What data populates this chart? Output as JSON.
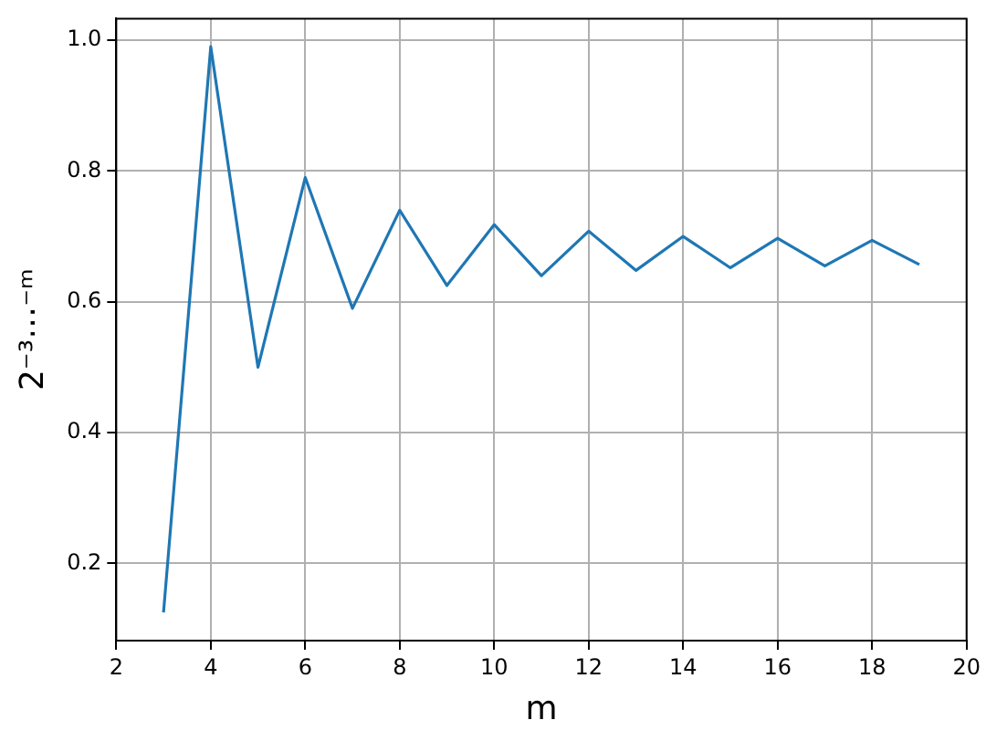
{
  "chart_data": {
    "type": "line",
    "xlabel": "m",
    "ylabel": "2⁻³⋯⁻ᵐ",
    "x": [
      3,
      4,
      5,
      6,
      7,
      8,
      9,
      10,
      11,
      12,
      13,
      14,
      15,
      16,
      17,
      18,
      19
    ],
    "series": [
      {
        "color": "#1f77b4",
        "values": [
          0.125,
          0.99,
          0.5,
          0.79,
          0.59,
          0.74,
          0.625,
          0.718,
          0.64,
          0.708,
          0.648,
          0.7,
          0.652,
          0.697,
          0.655,
          0.694,
          0.657
        ]
      }
    ],
    "xlim": [
      2,
      20
    ],
    "xticks": [
      2,
      4,
      6,
      8,
      10,
      12,
      14,
      16,
      18,
      20
    ],
    "ylim": [
      0.082,
      1.033
    ],
    "yticks": [
      0.2,
      0.4,
      0.6,
      0.8,
      {
        "value": 1,
        "label": "1.0"
      }
    ],
    "grid": true,
    "marker": "none",
    "line_style": "solid"
  }
}
